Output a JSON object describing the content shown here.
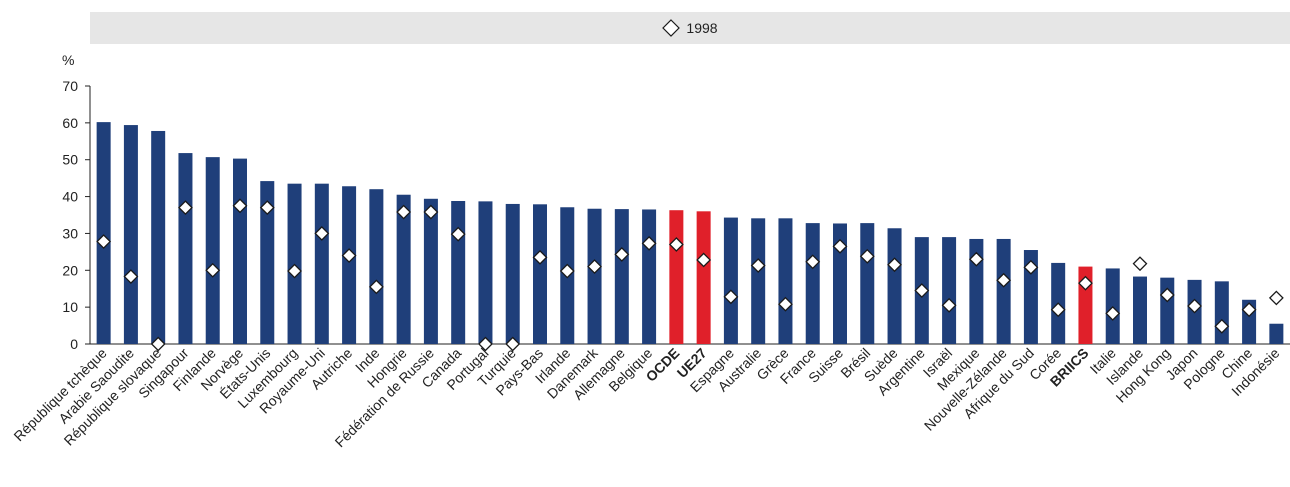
{
  "legend": {
    "label": "1998"
  },
  "chart_data": {
    "type": "bar",
    "ylabel": "%",
    "ylim": [
      0,
      70
    ],
    "yticks": [
      0,
      10,
      20,
      30,
      40,
      50,
      60,
      70
    ],
    "grid": false,
    "legend_position": "top-center",
    "colors": {
      "bar": "#1f3f7a",
      "highlight": "#e0202a",
      "marker_fill": "#ffffff",
      "marker_stroke": "#1a1a1a"
    },
    "categories": [
      "République tchèque",
      "Arabie Saoudite",
      "République slovaque",
      "Singapour",
      "Finlande",
      "Norvège",
      "États-Unis",
      "Luxembourg",
      "Royaume-Uni",
      "Autriche",
      "Inde",
      "Hongrie",
      "Fédération de Russie",
      "Canada",
      "Portugal",
      "Turquie",
      "Pays-Bas",
      "Irlande",
      "Danemark",
      "Allemagne",
      "Belgique",
      "OCDE",
      "UE27",
      "Espagne",
      "Australie",
      "Grèce",
      "France",
      "Suisse",
      "Brésil",
      "Suède",
      "Argentine",
      "Israël",
      "Mexique",
      "Nouvelle-Zélande",
      "Afrique du Sud",
      "Corée",
      "BRIICS",
      "Italie",
      "Islande",
      "Hong Kong",
      "Japon",
      "Pologne",
      "Chine",
      "Indonésie"
    ],
    "highlighted": [
      "OCDE",
      "UE27",
      "BRIICS"
    ],
    "series": [
      {
        "values": [
          60.2,
          59.4,
          57.8,
          51.8,
          50.7,
          50.3,
          44.2,
          43.5,
          43.5,
          42.8,
          42,
          40.5,
          39.4,
          38.8,
          38.7,
          38,
          37.9,
          37.1,
          36.7,
          36.6,
          36.5,
          36.3,
          36,
          34.3,
          34.1,
          34.1,
          32.8,
          32.7,
          32.8,
          31.4,
          29,
          29,
          28.5,
          28.5,
          25.5,
          22,
          21,
          20.5,
          18.3,
          18,
          17.4,
          17,
          12,
          5.5
        ]
      },
      {
        "name": "1998",
        "values": [
          27.8,
          18.3,
          0,
          37,
          20,
          37.5,
          37,
          19.8,
          30,
          24,
          15.5,
          35.8,
          35.8,
          29.8,
          0,
          0,
          23.5,
          19.8,
          21,
          24.3,
          27.3,
          27,
          22.8,
          12.8,
          21.3,
          10.8,
          22.3,
          26.5,
          23.8,
          21.5,
          14.5,
          10.5,
          23,
          17.3,
          20.8,
          9.3,
          16.5,
          8.3,
          21.8,
          13.3,
          10.3,
          4.8,
          9.3,
          12.5
        ]
      }
    ]
  }
}
